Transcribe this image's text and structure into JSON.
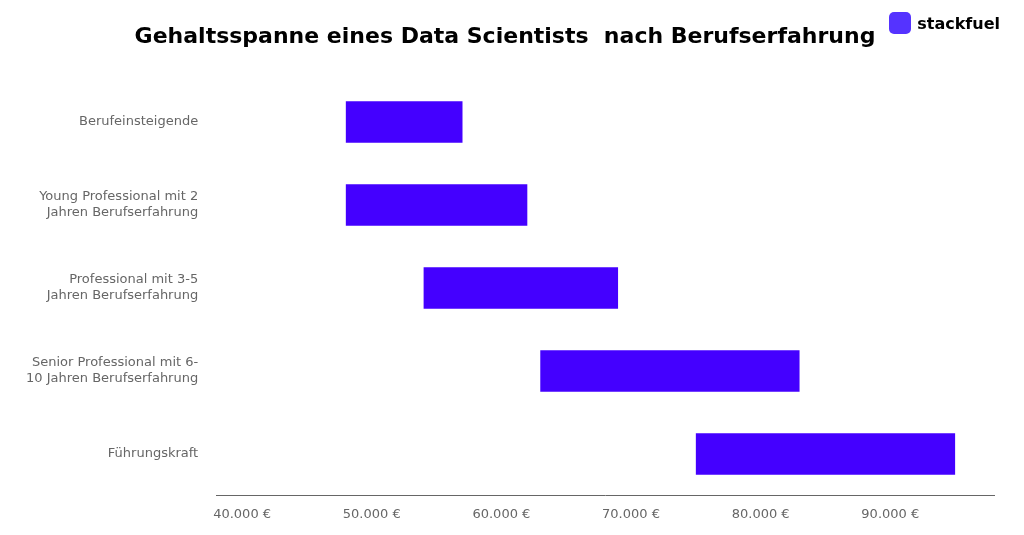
{
  "chart_data": {
    "type": "bar",
    "orientation": "horizontal",
    "title": "Gehaltsspanne eines Data Scientists  nach Berufserfahrung",
    "categories": [
      "Führungskraft",
      "Senior Professional mit 6-\n10 Jahren Berufserfahrung",
      "Professional mit 3-5\nJahren Berufserfahrung",
      "Young Professional mit 2\nJahren Berufserfahrung",
      "Berufeinsteigende"
    ],
    "values": [
      [
        75000,
        95000
      ],
      [
        63000,
        83000
      ],
      [
        54000,
        69000
      ],
      [
        48000,
        62000
      ],
      [
        48000,
        57000
      ]
    ],
    "color": "#4400FF",
    "xlim": [
      38000,
      98000
    ],
    "xticks": [
      {
        "value": 40000,
        "label": "40.000 €"
      },
      {
        "value": 50000,
        "label": "50.000 €"
      },
      {
        "value": 60000,
        "label": "60.000 €"
      },
      {
        "value": 70000,
        "label": "70.000 €"
      },
      {
        "value": 80000,
        "label": "80.000 €"
      },
      {
        "value": 90000,
        "label": "90.000 €"
      }
    ],
    "grid": false,
    "annotations": [
      "stackfuel"
    ]
  }
}
